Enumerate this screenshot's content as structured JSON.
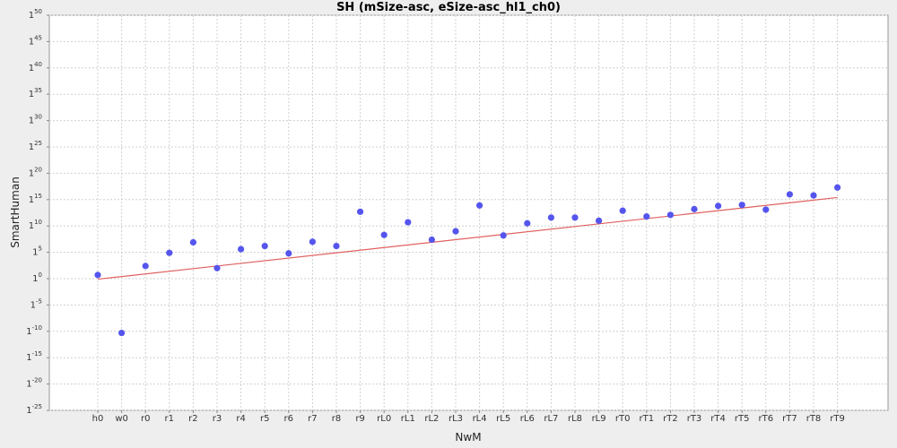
{
  "chart_data": {
    "type": "scatter",
    "title": "SH (mSize-asc, eSize-asc_hl1_ch0)",
    "xlabel": "NwM",
    "ylabel": "SmartHuman",
    "categories": [
      "h0",
      "w0",
      "r0",
      "r1",
      "r2",
      "r3",
      "r4",
      "r5",
      "r6",
      "r7",
      "r8",
      "r9",
      "rL0",
      "rL1",
      "rL2",
      "rL3",
      "rL4",
      "rL5",
      "rL6",
      "rL7",
      "rL8",
      "rL9",
      "rT0",
      "rT1",
      "rT2",
      "rT3",
      "rT4",
      "rT5",
      "rT6",
      "rT7",
      "rT8",
      "rT9"
    ],
    "y_tick_base": "1",
    "y_ticks": [
      -25,
      -20,
      -15,
      -10,
      -5,
      0,
      5,
      10,
      15,
      20,
      25,
      30,
      35,
      40,
      45,
      50
    ],
    "ylim": [
      -25,
      50
    ],
    "grid": true,
    "series": [
      {
        "kind": "points",
        "color": "#5555ee",
        "values": [
          0.7,
          -10.3,
          2.4,
          4.9,
          6.9,
          2.0,
          5.6,
          6.2,
          4.8,
          7.0,
          6.2,
          12.7,
          8.3,
          10.7,
          7.4,
          9.0,
          13.9,
          8.2,
          10.5,
          11.6,
          11.6,
          11.0,
          12.9,
          11.8,
          12.1,
          13.2,
          13.8,
          14.0,
          13.1,
          16.0,
          15.8,
          17.3
        ]
      },
      {
        "kind": "trend",
        "color": "#e06060",
        "start": -0.1,
        "end": 15.4
      }
    ]
  }
}
